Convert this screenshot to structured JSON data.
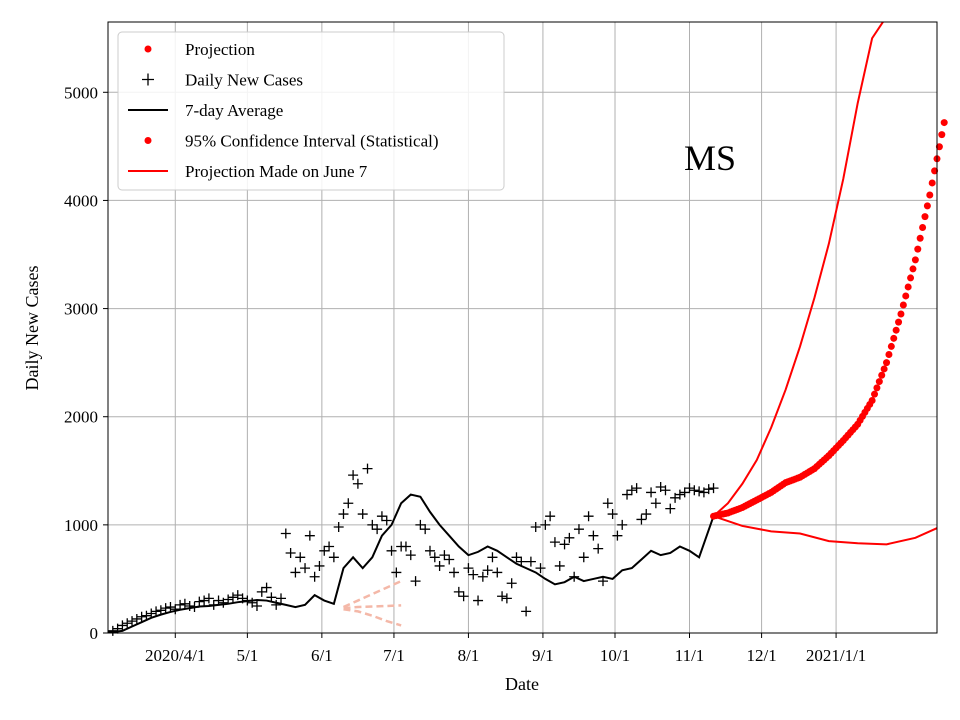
{
  "chart_data": {
    "type": "scatter",
    "title": "",
    "annotation": "MS",
    "xlabel": "Date",
    "ylabel": "Daily New Cases",
    "x_axis_start": "2020-03-04",
    "x_axis_end": "2021-02-12",
    "ylim": [
      0,
      5650
    ],
    "grid": true,
    "legend_position": "top-left",
    "x_ticks": [
      {
        "label": "2020/4/1",
        "date": "2020-04-01"
      },
      {
        "label": "5/1",
        "date": "2020-05-01"
      },
      {
        "label": "6/1",
        "date": "2020-06-01"
      },
      {
        "label": "7/1",
        "date": "2020-07-01"
      },
      {
        "label": "8/1",
        "date": "2020-08-01"
      },
      {
        "label": "9/1",
        "date": "2020-09-01"
      },
      {
        "label": "10/1",
        "date": "2020-10-01"
      },
      {
        "label": "11/1",
        "date": "2020-11-01"
      },
      {
        "label": "12/1",
        "date": "2020-12-01"
      },
      {
        "label": "2021/1/1",
        "date": "2021-01-01"
      }
    ],
    "y_ticks": [
      0,
      1000,
      2000,
      3000,
      4000,
      5000
    ],
    "legend": [
      {
        "label": "Projection",
        "marker": "dot",
        "color": "#ff0000"
      },
      {
        "label": "Daily New Cases",
        "marker": "plus",
        "color": "#000000"
      },
      {
        "label": "7-day Average",
        "marker": "line",
        "color": "#000000"
      },
      {
        "label": "95% Confidence Interval (Statistical)",
        "marker": "dot",
        "color": "#ff0000"
      },
      {
        "label": "Projection Made on June 7",
        "marker": "line",
        "color": "#ff0000"
      }
    ],
    "series": [
      {
        "name": "7-day Average",
        "style": "line",
        "color": "#000000",
        "x_days": [
          0,
          6,
          10,
          14,
          18,
          22,
          26,
          30,
          34,
          38,
          42,
          46,
          50,
          54,
          58,
          62,
          66,
          70,
          74,
          78,
          82,
          86,
          90,
          94,
          98,
          102,
          106,
          110,
          114,
          118,
          122,
          126,
          130,
          134,
          138,
          142,
          146,
          150,
          154,
          158,
          162,
          166,
          170,
          174,
          178,
          182,
          186,
          190,
          194,
          198,
          202,
          206,
          210,
          214,
          218,
          222,
          226,
          230,
          234,
          238,
          242,
          246,
          252
        ],
        "values": [
          5,
          20,
          60,
          100,
          140,
          170,
          195,
          215,
          230,
          245,
          250,
          260,
          270,
          285,
          295,
          305,
          300,
          280,
          260,
          240,
          260,
          350,
          300,
          270,
          600,
          700,
          600,
          700,
          900,
          1000,
          1200,
          1280,
          1260,
          1120,
          1000,
          900,
          800,
          720,
          750,
          800,
          760,
          700,
          640,
          600,
          560,
          500,
          450,
          470,
          520,
          480,
          500,
          520,
          500,
          580,
          600,
          680,
          760,
          720,
          740,
          800,
          760,
          700,
          1080
        ]
      },
      {
        "name": "Projection",
        "style": "dots",
        "color": "#ff0000",
        "x_days": [
          252,
          258,
          264,
          270,
          276,
          282,
          288,
          294,
          300,
          306,
          312,
          318,
          324,
          330,
          336,
          342,
          348
        ],
        "values": [
          1080,
          1110,
          1160,
          1230,
          1300,
          1390,
          1440,
          1520,
          1640,
          1780,
          1930,
          2150,
          2500,
          2950,
          3450,
          4050,
          4720
        ]
      },
      {
        "name": "Projection Made on June 7",
        "style": "line",
        "color": "#ff0000",
        "x_days": [
          252,
          258,
          264,
          270,
          276,
          282,
          288,
          294,
          300,
          306,
          312,
          318,
          324,
          330
        ],
        "values": [
          1080,
          1200,
          1380,
          1600,
          1900,
          2250,
          2650,
          3100,
          3600,
          4200,
          4900,
          5500,
          5700,
          5700
        ]
      },
      {
        "name": "Projection Made on June 7 (lower)",
        "style": "line",
        "color": "#ff0000",
        "x_days": [
          252,
          264,
          276,
          288,
          300,
          312,
          324,
          336,
          348
        ],
        "values": [
          1080,
          990,
          940,
          920,
          850,
          830,
          820,
          880,
          1000
        ]
      }
    ],
    "daily_cases_x_days": [
      2,
      4,
      6,
      8,
      10,
      12,
      14,
      16,
      18,
      20,
      22,
      24,
      26,
      28,
      30,
      32,
      34,
      36,
      38,
      40,
      42,
      44,
      46,
      48,
      50,
      52,
      54,
      56,
      58,
      60,
      62,
      64,
      66,
      68,
      70,
      72,
      74,
      76,
      78,
      80,
      82,
      84,
      86,
      88,
      90,
      92,
      94,
      96,
      98,
      100,
      102,
      104,
      106,
      108,
      110,
      112,
      114,
      116,
      118,
      120,
      122,
      124,
      126,
      128,
      130,
      132,
      134,
      136,
      138,
      140,
      142,
      144,
      146,
      148,
      150,
      152,
      154,
      156,
      158,
      160,
      162,
      164,
      166,
      168,
      170,
      172,
      174,
      176,
      178,
      180,
      182,
      184,
      186,
      188,
      190,
      192,
      194,
      196,
      198,
      200,
      202,
      204,
      206,
      208,
      210,
      212,
      214,
      216,
      218,
      220,
      222,
      224,
      226,
      228,
      230,
      232,
      234,
      236,
      238,
      240,
      242,
      244,
      246,
      248,
      250,
      252
    ],
    "daily_cases_values": [
      20,
      40,
      70,
      90,
      110,
      130,
      150,
      160,
      180,
      200,
      210,
      230,
      240,
      220,
      260,
      270,
      250,
      240,
      290,
      300,
      320,
      260,
      300,
      280,
      310,
      330,
      350,
      320,
      300,
      280,
      250,
      380,
      420,
      330,
      260,
      320,
      920,
      740,
      560,
      700,
      600,
      900,
      520,
      620,
      760,
      800,
      700,
      980,
      1100,
      1200,
      1460,
      1380,
      1100,
      1520,
      1000,
      960,
      1080,
      1040,
      760,
      560,
      800,
      800,
      720,
      480,
      1000,
      960,
      760,
      700,
      620,
      720,
      680,
      560,
      380,
      340,
      600,
      540,
      300,
      520,
      580,
      700,
      560,
      340,
      320,
      460,
      700,
      660,
      200,
      660,
      980,
      600,
      1000,
      1080,
      840,
      620,
      820,
      880,
      520,
      960,
      700,
      1080,
      900,
      780,
      480,
      1200,
      1100,
      900,
      1000,
      1280,
      1320,
      1340,
      1050,
      1100,
      1300,
      1200,
      1350,
      1320,
      1150,
      1250,
      1280,
      1300,
      1340,
      1320,
      1310,
      1300,
      1330,
      1340
    ],
    "confidence_intervals": [
      {
        "x_days": [
          98,
          104,
          110,
          116,
          122
        ],
        "values": [
          240,
          300,
          360,
          420,
          480
        ],
        "color": "#f4b8a8"
      },
      {
        "x_days": [
          98,
          104,
          110,
          116,
          122
        ],
        "values": [
          220,
          200,
          160,
          110,
          70
        ],
        "color": "#f4b8a8"
      },
      {
        "x_days": [
          98,
          104,
          110,
          116,
          122
        ],
        "values": [
          230,
          240,
          245,
          250,
          255
        ],
        "color": "#f4b8a8"
      }
    ]
  }
}
